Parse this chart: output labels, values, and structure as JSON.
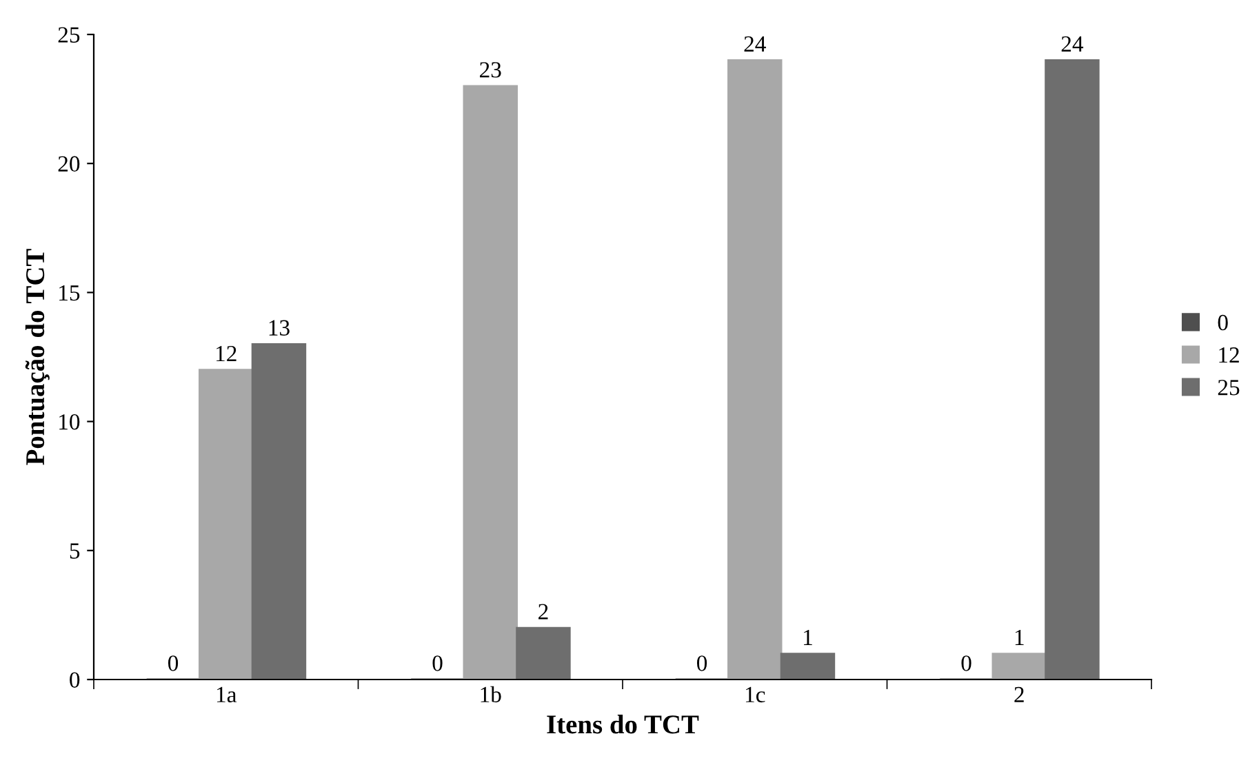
{
  "chart_data": {
    "type": "bar",
    "xlabel": "Itens do TCT",
    "ylabel": "Pontuação do TCT",
    "categories": [
      "1a",
      "1b",
      "1c",
      "2"
    ],
    "series": [
      {
        "name": "0",
        "color": "#4f4f4f",
        "values": [
          0,
          0,
          0,
          0
        ]
      },
      {
        "name": "12",
        "color": "#a8a8a8",
        "values": [
          12,
          23,
          24,
          1
        ]
      },
      {
        "name": "25",
        "color": "#6e6e6e",
        "values": [
          13,
          2,
          1,
          24
        ]
      }
    ],
    "ylim": [
      0,
      25
    ],
    "yticks": [
      0,
      5,
      10,
      15,
      20,
      25
    ],
    "grid": false,
    "legend": "right",
    "data_labels": true
  }
}
